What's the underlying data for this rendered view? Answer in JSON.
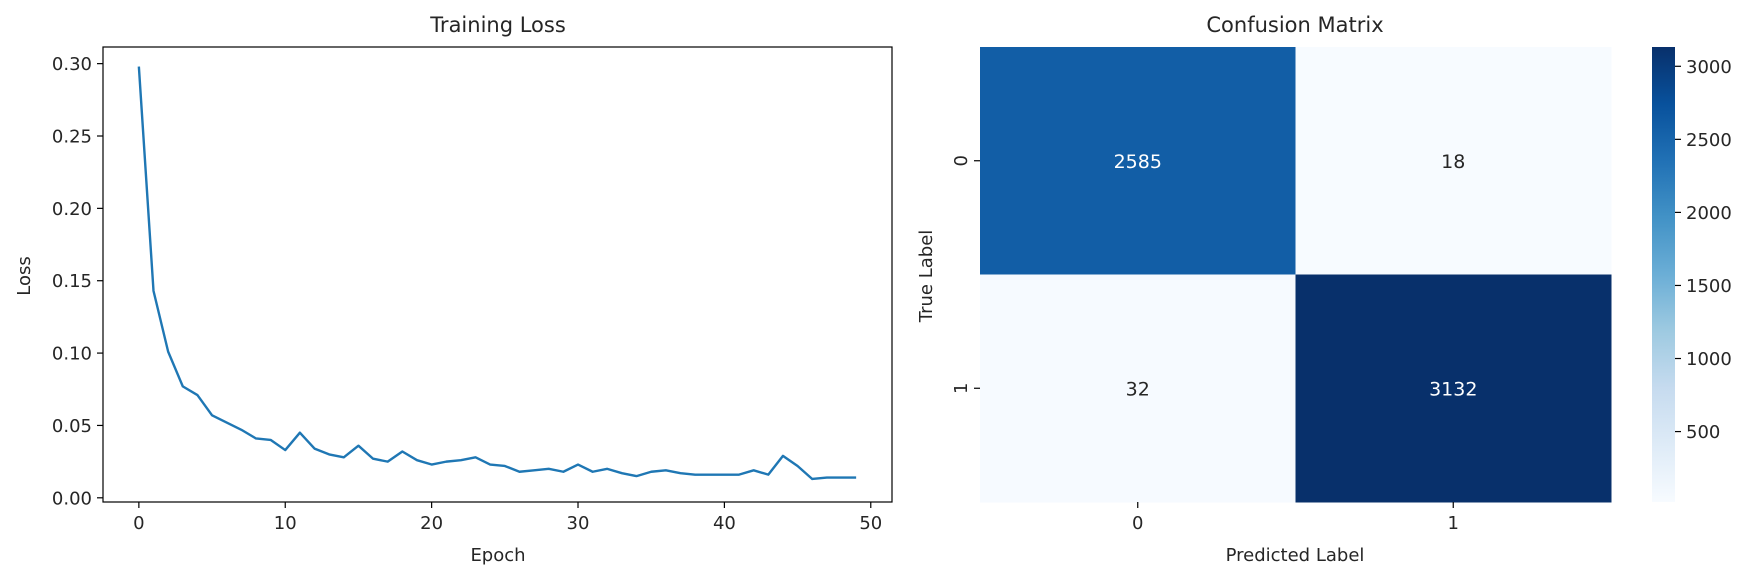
{
  "chart_data": [
    {
      "type": "line",
      "title": "Training Loss",
      "xlabel": "Epoch",
      "ylabel": "Loss",
      "xlim": [
        -2.45,
        51.45
      ],
      "ylim": [
        -0.0029,
        0.3115
      ],
      "xticks": [
        0,
        10,
        20,
        30,
        40,
        50
      ],
      "xtick_labels": [
        "0",
        "10",
        "20",
        "30",
        "40",
        "50"
      ],
      "yticks": [
        0.0,
        0.05,
        0.1,
        0.15,
        0.2,
        0.25,
        0.3
      ],
      "ytick_labels": [
        "0.00",
        "0.05",
        "0.10",
        "0.15",
        "0.20",
        "0.25",
        "0.30"
      ],
      "grid": false,
      "series": [
        {
          "color": "#1f77b4",
          "x": [
            0,
            1,
            2,
            3,
            4,
            5,
            6,
            7,
            8,
            9,
            10,
            11,
            12,
            13,
            14,
            15,
            16,
            17,
            18,
            19,
            20,
            21,
            22,
            23,
            24,
            25,
            26,
            27,
            28,
            29,
            30,
            31,
            32,
            33,
            34,
            35,
            36,
            37,
            38,
            39,
            40,
            41,
            42,
            43,
            44,
            45,
            46,
            47,
            48,
            49
          ],
          "y": [
            0.298,
            0.143,
            0.101,
            0.077,
            0.071,
            0.057,
            0.052,
            0.047,
            0.041,
            0.04,
            0.033,
            0.045,
            0.034,
            0.03,
            0.028,
            0.036,
            0.027,
            0.025,
            0.032,
            0.026,
            0.023,
            0.025,
            0.026,
            0.028,
            0.023,
            0.022,
            0.018,
            0.019,
            0.02,
            0.018,
            0.023,
            0.018,
            0.02,
            0.017,
            0.015,
            0.018,
            0.019,
            0.017,
            0.016,
            0.016,
            0.016,
            0.016,
            0.019,
            0.016,
            0.029,
            0.022,
            0.013,
            0.014,
            0.014,
            0.014
          ]
        }
      ]
    },
    {
      "type": "heatmap",
      "title": "Confusion Matrix",
      "xlabel": "Predicted Label",
      "ylabel": "True Label",
      "x_categories": [
        "0",
        "1"
      ],
      "y_categories": [
        "0",
        "1"
      ],
      "values": [
        [
          2585,
          18
        ],
        [
          32,
          3132
        ]
      ],
      "value_labels": [
        [
          "2585",
          "18"
        ],
        [
          "32",
          "3132"
        ]
      ],
      "colormap": "Blues",
      "colorbar": {
        "min": 18,
        "max": 3132,
        "ticks": [
          500,
          1000,
          1500,
          2000,
          2500,
          3000
        ],
        "tick_labels": [
          "500",
          "1000",
          "1500",
          "2000",
          "2500",
          "3000"
        ]
      }
    }
  ]
}
